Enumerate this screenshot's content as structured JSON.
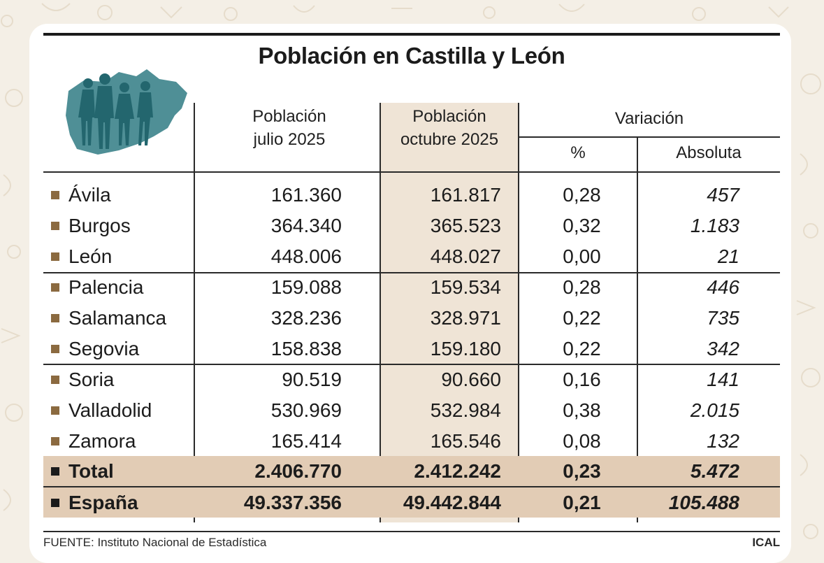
{
  "title": "Población en Castilla y León",
  "headers": {
    "jul_line1": "Población",
    "jul_line2": "julio 2025",
    "oct_line1": "Población",
    "oct_line2": "octubre 2025",
    "variation": "Variación",
    "pct": "%",
    "abs": "Absoluta"
  },
  "rows": [
    {
      "name": "Ávila",
      "jul": "161.360",
      "oct": "161.817",
      "pct": "0,28",
      "abs": "457"
    },
    {
      "name": "Burgos",
      "jul": "364.340",
      "oct": "365.523",
      "pct": "0,32",
      "abs": "1.183"
    },
    {
      "name": "León",
      "jul": "448.006",
      "oct": "448.027",
      "pct": "0,00",
      "abs": "21"
    },
    {
      "name": "Palencia",
      "jul": "159.088",
      "oct": "159.534",
      "pct": "0,28",
      "abs": "446"
    },
    {
      "name": "Salamanca",
      "jul": "328.236",
      "oct": "328.971",
      "pct": "0,22",
      "abs": "735"
    },
    {
      "name": "Segovia",
      "jul": "158.838",
      "oct": "159.180",
      "pct": "0,22",
      "abs": "342"
    },
    {
      "name": "Soria",
      "jul": "90.519",
      "oct": "90.660",
      "pct": "0,16",
      "abs": "141"
    },
    {
      "name": "Valladolid",
      "jul": "530.969",
      "oct": "532.984",
      "pct": "0,38",
      "abs": "2.015"
    },
    {
      "name": "Zamora",
      "jul": "165.414",
      "oct": "165.546",
      "pct": "0,08",
      "abs": "132"
    }
  ],
  "totals": [
    {
      "name": "Total",
      "jul": "2.406.770",
      "oct": "2.412.242",
      "pct": "0,23",
      "abs": "5.472"
    },
    {
      "name": "España",
      "jul": "49.337.356",
      "oct": "49.442.844",
      "pct": "0,21",
      "abs": "105.488"
    }
  ],
  "footer": {
    "source": "FUENTE: Instituto Nacional de Estadística",
    "agency": "ICAL"
  },
  "colors": {
    "shade": "#efe4d6",
    "total_band": "#e2ccb5",
    "bullet": "#8b6a40",
    "map": "#4f8f96",
    "people": "#23666e"
  },
  "icons": {
    "map": "castilla-leon-map-with-people-icon"
  }
}
